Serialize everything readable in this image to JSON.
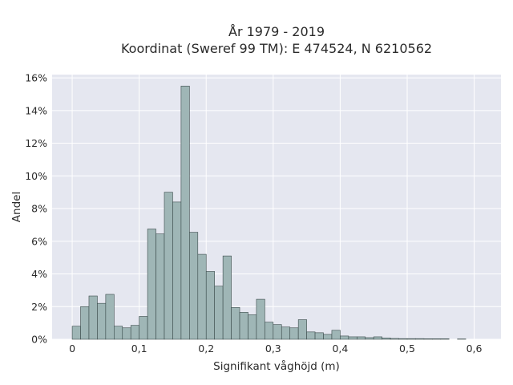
{
  "chart_data": {
    "type": "bar",
    "title": "År 1979 - 2019",
    "subtitle": "Koordinat (Sweref 99 TM): E 474524, N 6210562",
    "xlabel": "Signifikant våghöjd (m)",
    "ylabel": "Andel",
    "xlim": [
      -0.03,
      0.64
    ],
    "ylim": [
      0,
      16.2
    ],
    "bin_width": 0.0125,
    "x_ticks": [
      0,
      0.1,
      0.2,
      0.3,
      0.4,
      0.5,
      0.6
    ],
    "x_tick_labels": [
      "0",
      "0,1",
      "0,2",
      "0,3",
      "0,4",
      "0,5",
      "0,6"
    ],
    "y_ticks": [
      0,
      2,
      4,
      6,
      8,
      10,
      12,
      14,
      16
    ],
    "y_tick_labels": [
      "0%",
      "2%",
      "4%",
      "6%",
      "8%",
      "10%",
      "12%",
      "14%",
      "16%"
    ],
    "bin_starts": [
      0,
      0.0125,
      0.025,
      0.0375,
      0.05,
      0.0625,
      0.075,
      0.0875,
      0.1,
      0.1125,
      0.125,
      0.1375,
      0.15,
      0.1625,
      0.175,
      0.1875,
      0.2,
      0.2125,
      0.225,
      0.2375,
      0.25,
      0.2625,
      0.275,
      0.2875,
      0.3,
      0.3125,
      0.325,
      0.3375,
      0.35,
      0.3625,
      0.375,
      0.3875,
      0.4,
      0.4125,
      0.425,
      0.4375,
      0.45,
      0.4625,
      0.475,
      0.4875,
      0.5,
      0.5125,
      0.525,
      0.5375,
      0.55,
      0.5625,
      0.575
    ],
    "values": [
      0.8,
      2.0,
      2.65,
      2.2,
      2.75,
      0.8,
      0.7,
      0.85,
      1.4,
      6.75,
      6.45,
      9.0,
      8.4,
      15.5,
      6.55,
      5.2,
      4.15,
      3.25,
      5.1,
      1.95,
      1.65,
      1.5,
      2.45,
      1.05,
      0.9,
      0.75,
      0.7,
      1.2,
      0.45,
      0.4,
      0.3,
      0.55,
      0.2,
      0.15,
      0.15,
      0.1,
      0.15,
      0.08,
      0.05,
      0.04,
      0.04,
      0.04,
      0.03,
      0.03,
      0.03,
      0,
      0.02
    ],
    "grid": true,
    "colors": {
      "background": "#e5e7f0",
      "bar_fill": "#9fb6b6",
      "bar_edge": "#3a4a4a",
      "grid": "#ffffff"
    }
  }
}
